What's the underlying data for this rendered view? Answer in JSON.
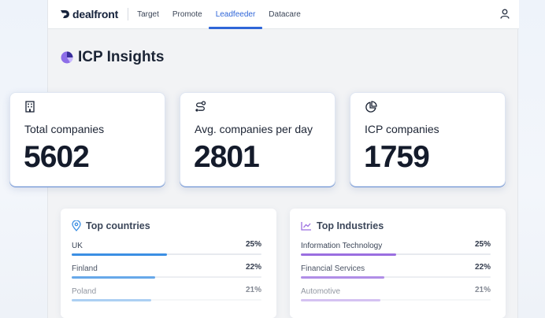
{
  "nav": {
    "brand": "dealfront",
    "tabs": [
      {
        "label": "Target"
      },
      {
        "label": "Promote"
      },
      {
        "label": "Leadfeeder",
        "active": true
      },
      {
        "label": "Datacare"
      }
    ],
    "icons": {
      "logo": "dealfront-logo",
      "user": "user-icon"
    }
  },
  "page": {
    "title": "ICP Insights",
    "title_icon": "pie-chart-icon"
  },
  "stats": [
    {
      "label": "Total companies",
      "value": "5602",
      "icon": "building-icon"
    },
    {
      "label": "Avg. companies per day",
      "value": "2801",
      "icon": "route-icon"
    },
    {
      "label": "ICP companies",
      "value": "1759",
      "icon": "pie-chart-icon"
    }
  ],
  "countries": {
    "title": "Top countries",
    "icon": "location-pin-icon",
    "color": "#3b8fe3",
    "rows": [
      {
        "name": "UK",
        "pct": "25%",
        "share": 0.25
      },
      {
        "name": "Finland",
        "pct": "22%",
        "share": 0.22
      },
      {
        "name": "Poland",
        "pct": "21%",
        "share": 0.21
      }
    ]
  },
  "industries": {
    "title": "Top Industries",
    "icon": "line-chart-icon",
    "color": "#9a6ee0",
    "rows": [
      {
        "name": "Information Technology",
        "pct": "25%",
        "share": 0.25
      },
      {
        "name": "Financial Services",
        "pct": "22%",
        "share": 0.22
      },
      {
        "name": "Automotive",
        "pct": "21%",
        "share": 0.21
      }
    ]
  },
  "colors": {
    "accent": "#2f66d8",
    "brand_navy": "#15223b",
    "brand_purple": "#8b5cf6"
  }
}
